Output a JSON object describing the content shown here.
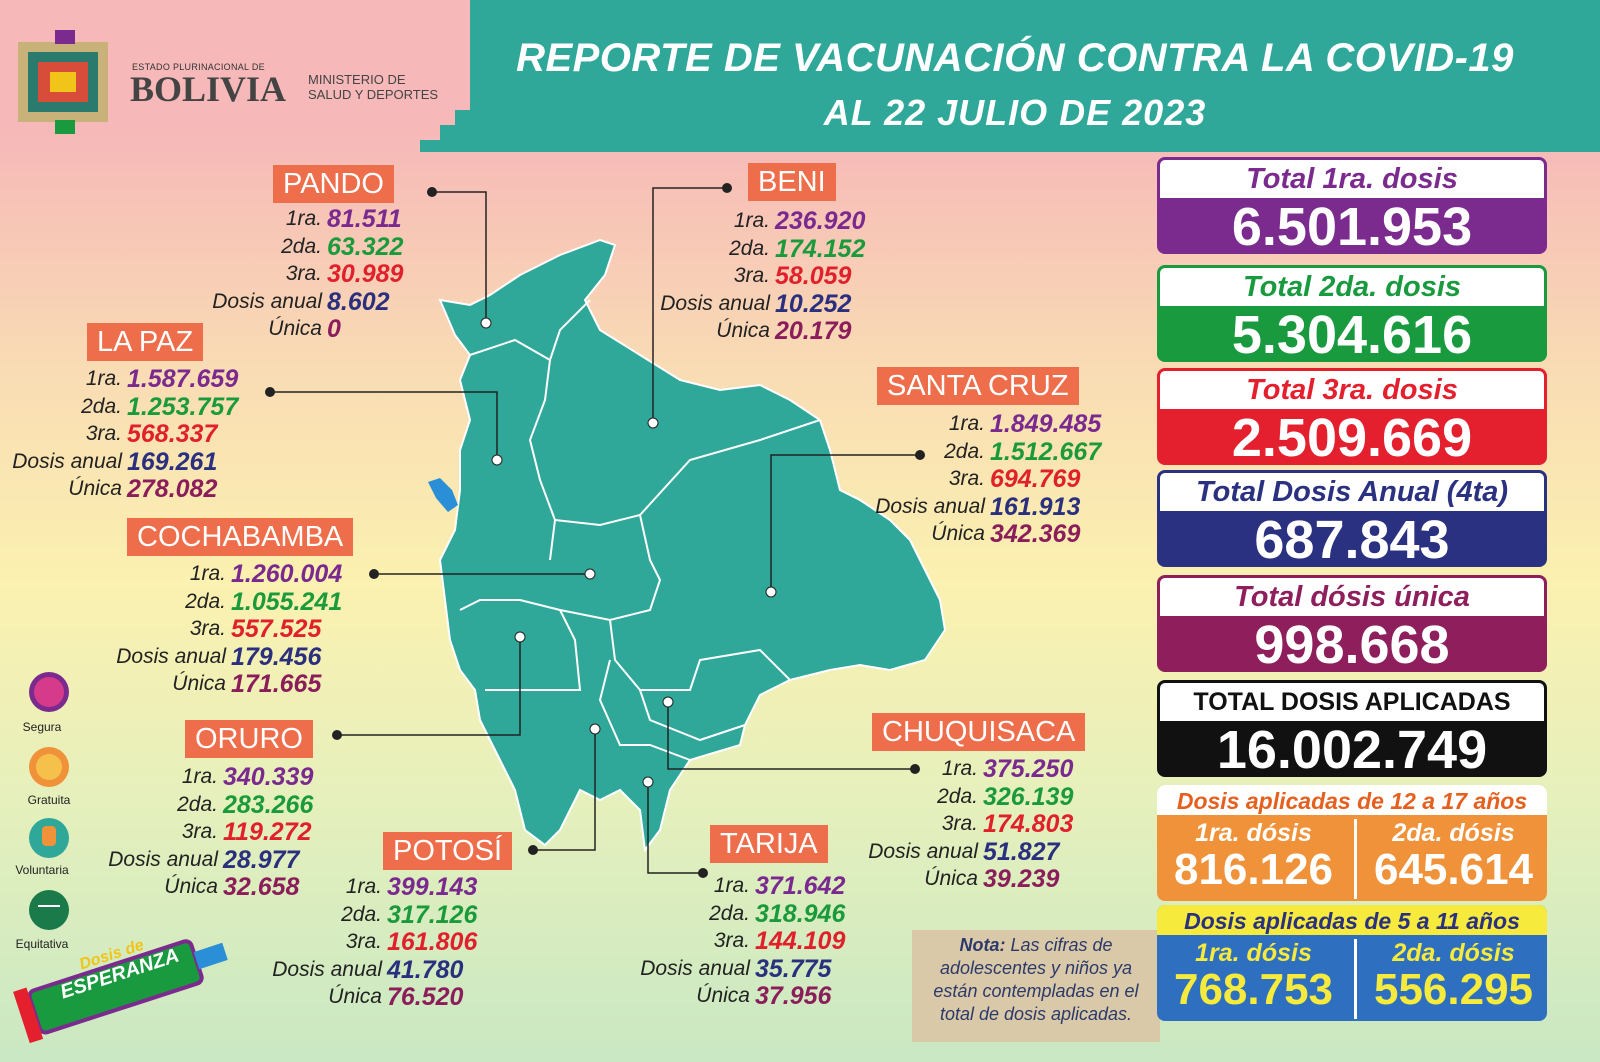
{
  "header": {
    "logo_small": "ESTADO PLURINACIONAL DE",
    "logo_big": "BOLIVIA",
    "ministry": [
      "MINISTERIO DE",
      "SALUD Y DEPORTES"
    ],
    "title": "REPORTE DE VACUNACIÓN CONTRA LA COVID-19",
    "subtitle": "AL 22 JULIO DE 2023"
  },
  "departments": [
    {
      "name": "PANDO",
      "rows": [
        [
          "1ra.",
          "81.511"
        ],
        [
          "2da.",
          "63.322"
        ],
        [
          "3ra.",
          "30.989"
        ],
        [
          "Dosis anual",
          "8.602"
        ],
        [
          "Única",
          "0"
        ]
      ]
    },
    {
      "name": "BENI",
      "rows": [
        [
          "1ra.",
          "236.920"
        ],
        [
          "2da.",
          "174.152"
        ],
        [
          "3ra.",
          "58.059"
        ],
        [
          "Dosis anual",
          "10.252"
        ],
        [
          "Única",
          "20.179"
        ]
      ]
    },
    {
      "name": "LA PAZ",
      "rows": [
        [
          "1ra.",
          "1.587.659"
        ],
        [
          "2da.",
          "1.253.757"
        ],
        [
          "3ra.",
          "568.337"
        ],
        [
          "Dosis anual",
          "169.261"
        ],
        [
          "Única",
          "278.082"
        ]
      ]
    },
    {
      "name": "SANTA CRUZ",
      "rows": [
        [
          "1ra.",
          "1.849.485"
        ],
        [
          "2da.",
          "1.512.667"
        ],
        [
          "3ra.",
          "694.769"
        ],
        [
          "Dosis anual",
          "161.913"
        ],
        [
          "Única",
          "342.369"
        ]
      ]
    },
    {
      "name": "COCHABAMBA",
      "rows": [
        [
          "1ra.",
          "1.260.004"
        ],
        [
          "2da.",
          "1.055.241"
        ],
        [
          "3ra.",
          "557.525"
        ],
        [
          "Dosis anual",
          "179.456"
        ],
        [
          "Única",
          "171.665"
        ]
      ]
    },
    {
      "name": "ORURO",
      "rows": [
        [
          "1ra.",
          "340.339"
        ],
        [
          "2da.",
          "283.266"
        ],
        [
          "3ra.",
          "119.272"
        ],
        [
          "Dosis anual",
          "28.977"
        ],
        [
          "Única",
          "32.658"
        ]
      ]
    },
    {
      "name": "POTOSÍ",
      "rows": [
        [
          "1ra.",
          "399.143"
        ],
        [
          "2da.",
          "317.126"
        ],
        [
          "3ra.",
          "161.806"
        ],
        [
          "Dosis anual",
          "41.780"
        ],
        [
          "Única",
          "76.520"
        ]
      ]
    },
    {
      "name": "TARIJA",
      "rows": [
        [
          "1ra.",
          "371.642"
        ],
        [
          "2da.",
          "318.946"
        ],
        [
          "3ra.",
          "144.109"
        ],
        [
          "Dosis anual",
          "35.775"
        ],
        [
          "Única",
          "37.956"
        ]
      ]
    },
    {
      "name": "CHUQUISACA",
      "rows": [
        [
          "1ra.",
          "375.250"
        ],
        [
          "2da.",
          "326.139"
        ],
        [
          "3ra.",
          "174.803"
        ],
        [
          "Dosis anual",
          "51.827"
        ],
        [
          "Única",
          "39.239"
        ]
      ]
    }
  ],
  "totals": [
    {
      "label": "Total 1ra. dosis",
      "value": "6.501.953"
    },
    {
      "label": "Total 2da. dosis",
      "value": "5.304.616"
    },
    {
      "label": "Total 3ra. dosis",
      "value": "2.509.669"
    },
    {
      "label": "Total Dosis Anual (4ta)",
      "value": "687.843"
    },
    {
      "label": "Total dósis única",
      "value": "998.668"
    },
    {
      "label": "TOTAL DOSIS APLICADAS",
      "value": "16.002.749"
    }
  ],
  "age_groups": [
    {
      "title": "Dosis aplicadas de 12 a 17 años",
      "doses": [
        {
          "label": "1ra. dósis",
          "value": "816.126"
        },
        {
          "label": "2da. dósis",
          "value": "645.614"
        }
      ]
    },
    {
      "title": "Dosis aplicadas de 5 a 11 años",
      "doses": [
        {
          "label": "1ra. dósis",
          "value": "768.753"
        },
        {
          "label": "2da. dósis",
          "value": "556.295"
        }
      ]
    }
  ],
  "note": {
    "label": "Nota:",
    "text": "Las cifras de adolescentes y niños ya están contempladas en el total de dosis aplicadas."
  },
  "icons": [
    "Segura",
    "Gratuita",
    "Voluntaria",
    "Equitativa"
  ],
  "campaign": [
    "Dosis de",
    "ESPERANZA"
  ]
}
